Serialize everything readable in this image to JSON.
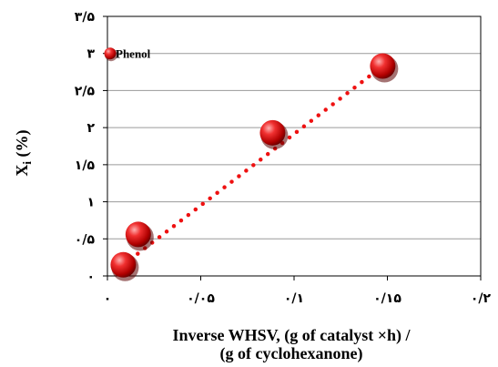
{
  "chart_data": {
    "type": "scatter",
    "title": "",
    "xlabel_line1": "Inverse WHSV, (g of catalyst ×h) /",
    "xlabel_line2": "(g of cyclohexanone)",
    "ylabel_main": "X",
    "ylabel_sub": "i",
    "ylabel_rest": " (%)",
    "xlim": [
      0,
      0.2
    ],
    "ylim": [
      0,
      3.5
    ],
    "x_ticks": [
      {
        "value": 0,
        "label": "۰"
      },
      {
        "value": 0.05,
        "label": "۰/۰۵"
      },
      {
        "value": 0.1,
        "label": "۰/۱"
      },
      {
        "value": 0.15,
        "label": "۰/۱۵"
      },
      {
        "value": 0.2,
        "label": "۰/۲"
      }
    ],
    "y_ticks": [
      {
        "value": 0,
        "label": "۰"
      },
      {
        "value": 0.5,
        "label": "۰/۵"
      },
      {
        "value": 1,
        "label": "۱"
      },
      {
        "value": 1.5,
        "label": "۱/۵"
      },
      {
        "value": 2,
        "label": "۲"
      },
      {
        "value": 2.5,
        "label": "۲/۵"
      },
      {
        "value": 3,
        "label": "۳"
      },
      {
        "value": 3.5,
        "label": "۳/۵"
      }
    ],
    "grid": "horizontal",
    "legend": {
      "label": "Phenol",
      "placement": "top-left"
    },
    "series": [
      {
        "name": "Phenol",
        "color": "#dd1111",
        "points": [
          {
            "x": 0.0085,
            "y": 0.15
          },
          {
            "x": 0.0165,
            "y": 0.56
          },
          {
            "x": 0.0885,
            "y": 1.93
          },
          {
            "x": 0.1475,
            "y": 2.83
          }
        ]
      }
    ],
    "trendline": {
      "style": "dotted",
      "color": "#ee1111",
      "from": {
        "x": 0.0085,
        "y": 0.15
      },
      "to": {
        "x": 0.1475,
        "y": 2.83
      }
    }
  }
}
